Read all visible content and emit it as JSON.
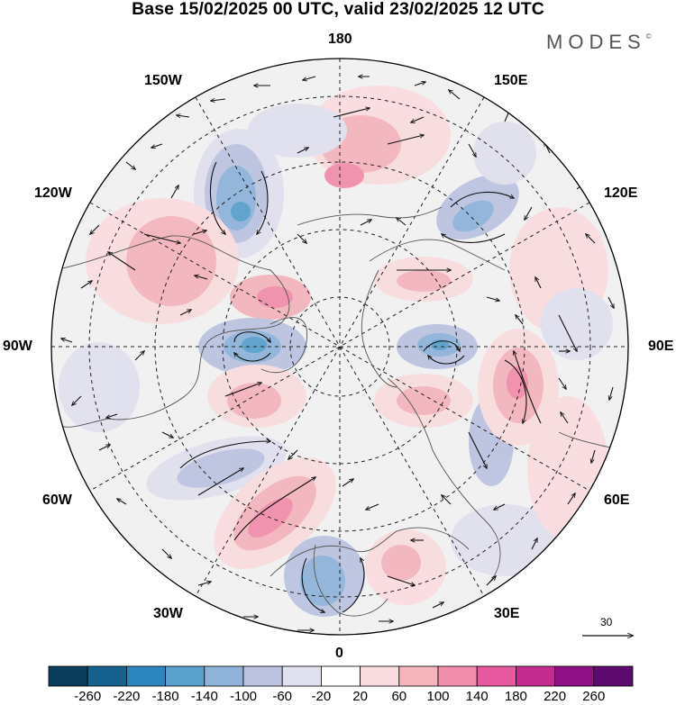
{
  "header": {
    "title": "Base 15/02/2025 00 UTC, valid 23/02/2025 12 UTC",
    "brand": "MODES",
    "brand_mark": "©"
  },
  "map": {
    "projection": "north-polar-stereographic",
    "longitude_labels": {
      "lon_180": "180",
      "lon_150e": "150E",
      "lon_120e": "120E",
      "lon_90e": "90E",
      "lon_60e": "60E",
      "lon_30e": "30E",
      "lon_0": "0",
      "lon_30w": "30W",
      "lon_60w": "60W",
      "lon_90w": "90W",
      "lon_120w": "120W",
      "lon_150w": "150W"
    },
    "reference_vector_label": "30"
  },
  "colorbar": {
    "colors": [
      "#0b3d5c",
      "#17618f",
      "#2c85bc",
      "#5aa0cc",
      "#8fb3d9",
      "#bcc3e0",
      "#e0e0ee",
      "#ffffff",
      "#f9dcdf",
      "#f4b5bd",
      "#f08eab",
      "#e85aa0",
      "#c42b8e",
      "#8e1185",
      "#5c0a6e"
    ],
    "tick_labels": [
      "-260",
      "-220",
      "-180",
      "-140",
      "-100",
      "-60",
      "-20",
      "20",
      "60",
      "100",
      "140",
      "180",
      "220",
      "260"
    ]
  }
}
